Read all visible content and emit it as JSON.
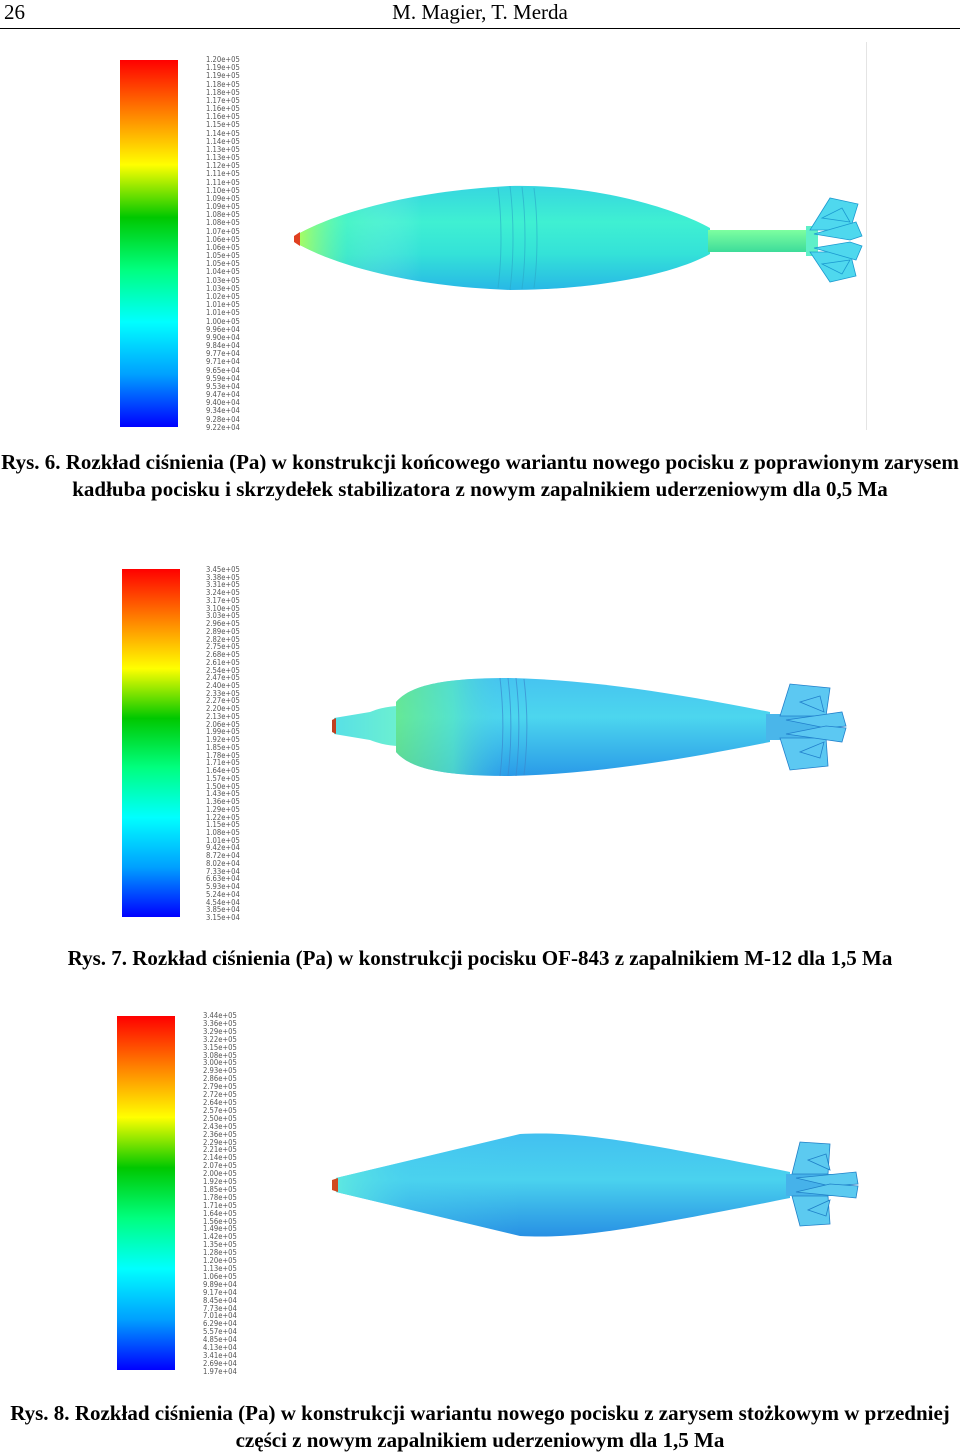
{
  "header": {
    "page_number": "26",
    "authors": "M. Magier, T. Merda"
  },
  "colorscale": [
    "#0000ff",
    "#00a0ff",
    "#00ffff",
    "#00ff7f",
    "#00c800",
    "#ffff00",
    "#ff8000",
    "#ff0000"
  ],
  "figures": [
    {
      "caption_label": "Rys. 6.",
      "caption_text": "Rozkład ciśnienia (Pa) w konstrukcji końcowego wariantu nowego pocisku z poprawionym zarysem kadłuba pocisku i skrzydełek stabilizatora z nowym zapalnikiem uderzeniowym dla 0,5 Ma",
      "ticks": [
        "1.20e+05",
        "1.19e+05",
        "1.19e+05",
        "1.18e+05",
        "1.18e+05",
        "1.17e+05",
        "1.16e+05",
        "1.16e+05",
        "1.15e+05",
        "1.14e+05",
        "1.14e+05",
        "1.13e+05",
        "1.13e+05",
        "1.12e+05",
        "1.11e+05",
        "1.11e+05",
        "1.10e+05",
        "1.09e+05",
        "1.09e+05",
        "1.08e+05",
        "1.08e+05",
        "1.07e+05",
        "1.06e+05",
        "1.06e+05",
        "1.05e+05",
        "1.05e+05",
        "1.04e+05",
        "1.03e+05",
        "1.03e+05",
        "1.02e+05",
        "1.01e+05",
        "1.01e+05",
        "1.00e+05",
        "9.96e+04",
        "9.90e+04",
        "9.84e+04",
        "9.77e+04",
        "9.71e+04",
        "9.65e+04",
        "9.59e+04",
        "9.53e+04",
        "9.47e+04",
        "9.40e+04",
        "9.34e+04",
        "9.28e+04",
        "9.22e+04"
      ]
    },
    {
      "caption_label": "Rys. 7.",
      "caption_text": "Rozkład ciśnienia (Pa) w konstrukcji pocisku OF-843 z zapalnikiem M-12 dla 1,5 Ma",
      "ticks": [
        "3.45e+05",
        "3.38e+05",
        "3.31e+05",
        "3.24e+05",
        "3.17e+05",
        "3.10e+05",
        "3.03e+05",
        "2.96e+05",
        "2.89e+05",
        "2.82e+05",
        "2.75e+05",
        "2.68e+05",
        "2.61e+05",
        "2.54e+05",
        "2.47e+05",
        "2.40e+05",
        "2.33e+05",
        "2.27e+05",
        "2.20e+05",
        "2.13e+05",
        "2.06e+05",
        "1.99e+05",
        "1.92e+05",
        "1.85e+05",
        "1.78e+05",
        "1.71e+05",
        "1.64e+05",
        "1.57e+05",
        "1.50e+05",
        "1.43e+05",
        "1.36e+05",
        "1.29e+05",
        "1.22e+05",
        "1.15e+05",
        "1.08e+05",
        "1.01e+05",
        "9.42e+04",
        "8.72e+04",
        "8.02e+04",
        "7.33e+04",
        "6.63e+04",
        "5.93e+04",
        "5.24e+04",
        "4.54e+04",
        "3.85e+04",
        "3.15e+04"
      ]
    },
    {
      "caption_label": "Rys. 8.",
      "caption_text": "Rozkład ciśnienia (Pa) w konstrukcji wariantu nowego pocisku z zarysem stożkowym w przedniej części z nowym zapalnikiem uderzeniowym dla 1,5 Ma",
      "ticks": [
        "3.44e+05",
        "3.36e+05",
        "3.29e+05",
        "3.22e+05",
        "3.15e+05",
        "3.08e+05",
        "3.00e+05",
        "2.93e+05",
        "2.86e+05",
        "2.79e+05",
        "2.72e+05",
        "2.64e+05",
        "2.57e+05",
        "2.50e+05",
        "2.43e+05",
        "2.36e+05",
        "2.29e+05",
        "2.21e+05",
        "2.14e+05",
        "2.07e+05",
        "2.00e+05",
        "1.92e+05",
        "1.85e+05",
        "1.78e+05",
        "1.71e+05",
        "1.64e+05",
        "1.56e+05",
        "1.49e+05",
        "1.42e+05",
        "1.35e+05",
        "1.28e+05",
        "1.20e+05",
        "1.13e+05",
        "1.06e+05",
        "9.89e+04",
        "9.17e+04",
        "8.45e+04",
        "7.73e+04",
        "7.01e+04",
        "6.29e+04",
        "5.57e+04",
        "4.85e+04",
        "4.13e+04",
        "3.41e+04",
        "2.69e+04",
        "1.97e+04"
      ]
    }
  ]
}
